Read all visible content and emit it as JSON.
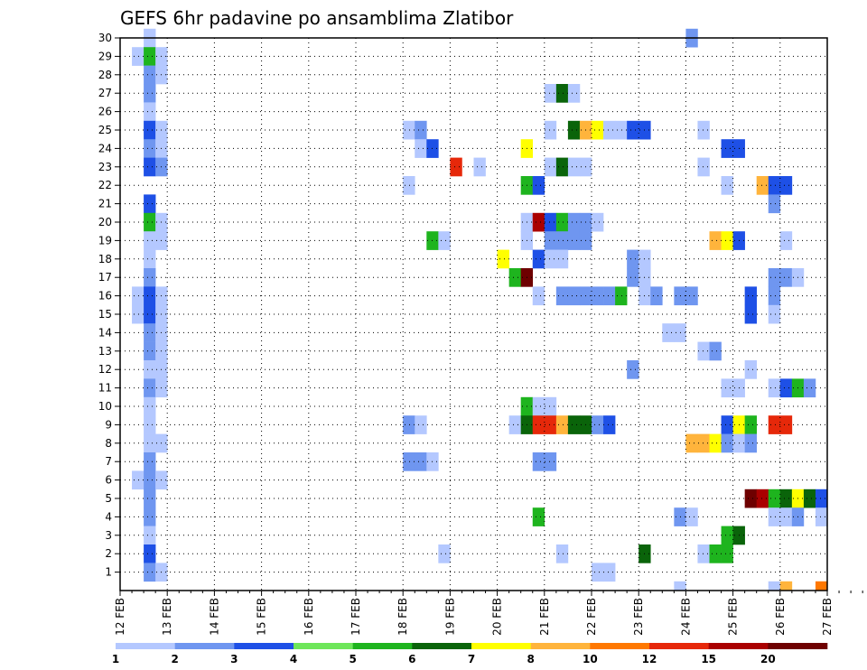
{
  "chart_data": {
    "type": "heatmap",
    "title": "GEFS 6hr padavine po ansamblima Zlatibor",
    "x_tick_labels": [
      "12 FEB",
      "13 FEB",
      "14 FEB",
      "15 FEB",
      "16 FEB",
      "17 FEB",
      "18 FEB",
      "19 FEB",
      "20 FEB",
      "21 FEB",
      "22 FEB",
      "23 FEB",
      "24 FEB",
      "25 FEB",
      "26 FEB",
      "27 FEB"
    ],
    "x_range_days": [
      0,
      15
    ],
    "time_step_hours": 6,
    "y_tick_labels": [
      "1",
      "2",
      "3",
      "4",
      "5",
      "6",
      "7",
      "8",
      "9",
      "10",
      "11",
      "12",
      "13",
      "14",
      "15",
      "16",
      "17",
      "18",
      "19",
      "20",
      "21",
      "22",
      "23",
      "24",
      "25",
      "26",
      "27",
      "28",
      "29",
      "30"
    ],
    "y_range": [
      0,
      30
    ],
    "grid": true,
    "legend": {
      "position": "bottom",
      "labels": [
        "1",
        "2",
        "3",
        "4",
        "5",
        "6",
        "7",
        "8",
        "10",
        "12",
        "15",
        "20"
      ],
      "colors": [
        "#b4c8ff",
        "#6f96f0",
        "#1e50e6",
        "#6ee65a",
        "#1eb41e",
        "#0a640a",
        "#ffff00",
        "#ffb43c",
        "#ff7800",
        "#e6280a",
        "#aa0000",
        "#6e0000"
      ]
    },
    "cells_note": "each cell = [6h step index from 12 FEB 00Z, ensemble member, legend class index 0-11]",
    "cells": [
      [
        1,
        29,
        0
      ],
      [
        1,
        16,
        0
      ],
      [
        1,
        15,
        0
      ],
      [
        1,
        6,
        0
      ],
      [
        2,
        30,
        0
      ],
      [
        2,
        29,
        4
      ],
      [
        2,
        28,
        1
      ],
      [
        2,
        27,
        1
      ],
      [
        2,
        26,
        0
      ],
      [
        2,
        25,
        2
      ],
      [
        2,
        24,
        1
      ],
      [
        2,
        23,
        2
      ],
      [
        2,
        21,
        2
      ],
      [
        2,
        20,
        4
      ],
      [
        2,
        19,
        0
      ],
      [
        2,
        18,
        0
      ],
      [
        2,
        17,
        1
      ],
      [
        2,
        16,
        2
      ],
      [
        2,
        15,
        2
      ],
      [
        2,
        14,
        1
      ],
      [
        2,
        13,
        1
      ],
      [
        2,
        12,
        0
      ],
      [
        2,
        11,
        1
      ],
      [
        2,
        10,
        0
      ],
      [
        2,
        9,
        0
      ],
      [
        2,
        8,
        0
      ],
      [
        2,
        7,
        1
      ],
      [
        2,
        6,
        1
      ],
      [
        2,
        5,
        1
      ],
      [
        2,
        4,
        1
      ],
      [
        2,
        3,
        0
      ],
      [
        2,
        2,
        2
      ],
      [
        2,
        1,
        1
      ],
      [
        3,
        29,
        0
      ],
      [
        3,
        28,
        0
      ],
      [
        3,
        25,
        0
      ],
      [
        3,
        24,
        0
      ],
      [
        3,
        23,
        1
      ],
      [
        3,
        20,
        0
      ],
      [
        3,
        19,
        0
      ],
      [
        3,
        16,
        0
      ],
      [
        3,
        15,
        0
      ],
      [
        3,
        14,
        0
      ],
      [
        3,
        13,
        0
      ],
      [
        3,
        12,
        0
      ],
      [
        3,
        11,
        0
      ],
      [
        3,
        8,
        0
      ],
      [
        3,
        6,
        0
      ],
      [
        3,
        1,
        0
      ],
      [
        24,
        22,
        0
      ],
      [
        24,
        25,
        0
      ],
      [
        24,
        9,
        1
      ],
      [
        24,
        7,
        1
      ],
      [
        25,
        25,
        1
      ],
      [
        25,
        24,
        0
      ],
      [
        25,
        9,
        0
      ],
      [
        25,
        7,
        1
      ],
      [
        26,
        24,
        2
      ],
      [
        26,
        19,
        4
      ],
      [
        26,
        7,
        0
      ],
      [
        27,
        19,
        0
      ],
      [
        27,
        2,
        0
      ],
      [
        28,
        23,
        9
      ],
      [
        30,
        23,
        0
      ],
      [
        32,
        18,
        6
      ],
      [
        33,
        17,
        4
      ],
      [
        33,
        9,
        0
      ],
      [
        34,
        24,
        6
      ],
      [
        34,
        22,
        4
      ],
      [
        34,
        20,
        0
      ],
      [
        34,
        19,
        0
      ],
      [
        34,
        17,
        11
      ],
      [
        34,
        10,
        4
      ],
      [
        34,
        9,
        5
      ],
      [
        35,
        22,
        2
      ],
      [
        35,
        20,
        10
      ],
      [
        35,
        18,
        2
      ],
      [
        35,
        16,
        0
      ],
      [
        35,
        10,
        0
      ],
      [
        35,
        9,
        9
      ],
      [
        35,
        7,
        1
      ],
      [
        35,
        4,
        4
      ],
      [
        36,
        27,
        0
      ],
      [
        36,
        25,
        0
      ],
      [
        36,
        23,
        0
      ],
      [
        36,
        20,
        2
      ],
      [
        36,
        19,
        1
      ],
      [
        36,
        18,
        0
      ],
      [
        36,
        10,
        0
      ],
      [
        36,
        9,
        9
      ],
      [
        36,
        7,
        1
      ],
      [
        37,
        27,
        5
      ],
      [
        37,
        23,
        5
      ],
      [
        37,
        20,
        4
      ],
      [
        37,
        19,
        1
      ],
      [
        37,
        18,
        0
      ],
      [
        37,
        16,
        1
      ],
      [
        37,
        9,
        7
      ],
      [
        37,
        2,
        0
      ],
      [
        38,
        27,
        0
      ],
      [
        38,
        25,
        5
      ],
      [
        38,
        23,
        0
      ],
      [
        38,
        20,
        1
      ],
      [
        38,
        19,
        1
      ],
      [
        38,
        16,
        1
      ],
      [
        38,
        9,
        5
      ],
      [
        39,
        25,
        7
      ],
      [
        39,
        23,
        0
      ],
      [
        39,
        20,
        1
      ],
      [
        39,
        19,
        1
      ],
      [
        39,
        16,
        1
      ],
      [
        39,
        9,
        5
      ],
      [
        40,
        25,
        6
      ],
      [
        40,
        20,
        0
      ],
      [
        40,
        16,
        1
      ],
      [
        40,
        9,
        1
      ],
      [
        40,
        1,
        0
      ],
      [
        41,
        25,
        0
      ],
      [
        41,
        16,
        1
      ],
      [
        41,
        9,
        2
      ],
      [
        41,
        1,
        0
      ],
      [
        42,
        25,
        0
      ],
      [
        42,
        16,
        4
      ],
      [
        43,
        25,
        2
      ],
      [
        43,
        18,
        1
      ],
      [
        43,
        17,
        1
      ],
      [
        43,
        12,
        1
      ],
      [
        44,
        25,
        2
      ],
      [
        44,
        18,
        0
      ],
      [
        44,
        17,
        0
      ],
      [
        44,
        16,
        0
      ],
      [
        44,
        2,
        5
      ],
      [
        45,
        16,
        1
      ],
      [
        46,
        14,
        0
      ],
      [
        47,
        16,
        1
      ],
      [
        47,
        14,
        0
      ],
      [
        47,
        4,
        1
      ],
      [
        47,
        0,
        0
      ],
      [
        48,
        30,
        1
      ],
      [
        48,
        16,
        1
      ],
      [
        48,
        8,
        7
      ],
      [
        48,
        4,
        0
      ],
      [
        49,
        25,
        0
      ],
      [
        49,
        23,
        0
      ],
      [
        49,
        13,
        0
      ],
      [
        49,
        8,
        7
      ],
      [
        49,
        2,
        0
      ],
      [
        50,
        19,
        7
      ],
      [
        50,
        13,
        1
      ],
      [
        50,
        8,
        6
      ],
      [
        50,
        2,
        4
      ],
      [
        51,
        24,
        2
      ],
      [
        51,
        22,
        0
      ],
      [
        51,
        19,
        6
      ],
      [
        51,
        11,
        0
      ],
      [
        51,
        9,
        2
      ],
      [
        51,
        8,
        1
      ],
      [
        51,
        3,
        4
      ],
      [
        51,
        2,
        4
      ],
      [
        52,
        24,
        2
      ],
      [
        52,
        19,
        2
      ],
      [
        52,
        11,
        0
      ],
      [
        52,
        9,
        6
      ],
      [
        52,
        8,
        0
      ],
      [
        52,
        3,
        5
      ],
      [
        53,
        16,
        2
      ],
      [
        53,
        15,
        2
      ],
      [
        53,
        12,
        0
      ],
      [
        53,
        9,
        4
      ],
      [
        53,
        8,
        1
      ],
      [
        53,
        5,
        11
      ],
      [
        54,
        22,
        7
      ],
      [
        54,
        5,
        10
      ],
      [
        55,
        22,
        2
      ],
      [
        55,
        21,
        1
      ],
      [
        55,
        17,
        1
      ],
      [
        55,
        16,
        1
      ],
      [
        55,
        15,
        0
      ],
      [
        55,
        11,
        0
      ],
      [
        55,
        9,
        9
      ],
      [
        55,
        5,
        4
      ],
      [
        55,
        4,
        0
      ],
      [
        55,
        0,
        0
      ],
      [
        56,
        22,
        2
      ],
      [
        56,
        19,
        0
      ],
      [
        56,
        17,
        1
      ],
      [
        56,
        11,
        2
      ],
      [
        56,
        9,
        9
      ],
      [
        56,
        5,
        5
      ],
      [
        56,
        4,
        0
      ],
      [
        56,
        0,
        7
      ],
      [
        57,
        17,
        0
      ],
      [
        57,
        11,
        4
      ],
      [
        57,
        5,
        6
      ],
      [
        57,
        4,
        1
      ],
      [
        58,
        11,
        1
      ],
      [
        58,
        5,
        5
      ],
      [
        59,
        5,
        2
      ],
      [
        59,
        4,
        0
      ],
      [
        59,
        0,
        8
      ],
      [
        60,
        23,
        0
      ],
      [
        60,
        15,
        4
      ],
      [
        60,
        5,
        2
      ],
      [
        60,
        0,
        9
      ]
    ]
  }
}
